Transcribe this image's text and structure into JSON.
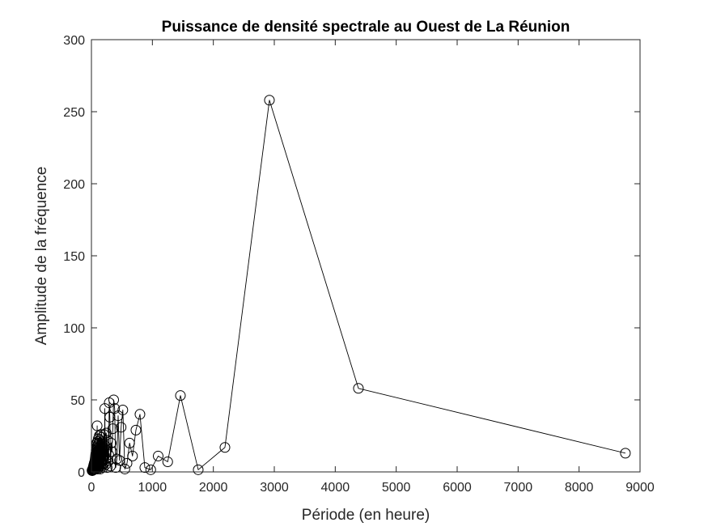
{
  "chart_data": {
    "type": "line",
    "title": "Puissance de densité spectrale au Ouest de La Réunion",
    "xlabel": "Période (en heure)",
    "ylabel": "Amplitude de la fréquence",
    "xlim": [
      0,
      9000
    ],
    "ylim": [
      0,
      300
    ],
    "xticks": [
      0,
      1000,
      2000,
      3000,
      4000,
      5000,
      6000,
      7000,
      8000,
      9000
    ],
    "yticks": [
      0,
      50,
      100,
      150,
      200,
      250,
      300
    ],
    "grid": false,
    "legend": "none",
    "marker": "circle",
    "line_color": "#000000",
    "series": [
      {
        "x": [
          8760,
          4380,
          2920,
          2190,
          1752,
          1460,
          1251,
          1095,
          973,
          876,
          796,
          730,
          674,
          626,
          584,
          548,
          515,
          487,
          461,
          438,
          417,
          398,
          381,
          365,
          350,
          337,
          324,
          313,
          302,
          292,
          283,
          274,
          265,
          258,
          250,
          243,
          237,
          231,
          225,
          219,
          214,
          209,
          204,
          199,
          195,
          190,
          186,
          183,
          179,
          175,
          172,
          168,
          165,
          162,
          159,
          156,
          154,
          151,
          148,
          146,
          144,
          141,
          139,
          137,
          135,
          133,
          131,
          129,
          127,
          125,
          123,
          122,
          120,
          118,
          117,
          115,
          114,
          112,
          111,
          110,
          108,
          107,
          106,
          104,
          103,
          102,
          101,
          100,
          98,
          97,
          96,
          95,
          94,
          93,
          92,
          91,
          90,
          89,
          88,
          87,
          86,
          85,
          84,
          83,
          82,
          81,
          80,
          79,
          78,
          77,
          76,
          75,
          74,
          73,
          72,
          71,
          70,
          69,
          68,
          67,
          66,
          65,
          64,
          63,
          62,
          61,
          60,
          58,
          56,
          54,
          52,
          50,
          48,
          46,
          44,
          42,
          40,
          38,
          36,
          34,
          32,
          30,
          28,
          26,
          24,
          22,
          20,
          18,
          16,
          14,
          12,
          10
        ],
        "y": [
          13,
          58,
          258,
          17,
          1.5,
          53,
          7,
          11,
          1.5,
          3,
          40,
          29,
          11,
          20,
          6,
          2,
          43,
          31,
          8,
          39,
          9,
          3,
          44,
          50,
          30,
          14,
          20,
          4,
          38,
          48,
          12,
          8,
          22,
          3,
          15,
          27,
          9,
          5,
          18,
          44,
          11,
          6,
          26,
          8,
          14,
          3,
          21,
          9,
          17,
          5,
          24,
          12,
          7,
          19,
          3,
          15,
          10,
          26,
          6,
          13,
          2,
          18,
          9,
          22,
          4,
          16,
          11,
          7,
          25,
          3,
          14,
          9,
          20,
          5,
          12,
          17,
          3,
          23,
          8,
          13,
          4,
          19,
          10,
          6,
          15,
          2,
          21,
          9,
          14,
          5,
          18,
          7,
          32,
          11,
          4,
          16,
          8,
          13,
          3,
          20,
          6,
          12,
          9,
          17,
          4,
          14,
          7,
          11,
          3,
          15,
          8,
          10,
          5,
          13,
          2,
          9,
          12,
          6,
          11,
          4,
          8,
          10,
          3,
          7,
          9,
          5,
          8,
          2,
          6,
          7,
          4,
          5,
          3,
          6,
          2,
          4,
          5,
          3,
          2,
          4,
          3,
          2,
          3,
          2,
          1.5,
          2,
          1.5,
          1,
          1.5,
          1,
          1,
          1
        ]
      }
    ]
  }
}
